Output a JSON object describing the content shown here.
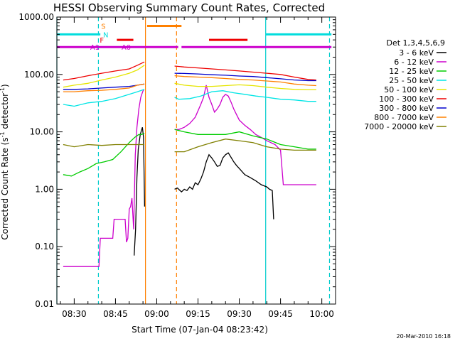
{
  "chart_data": {
    "type": "line",
    "title": "HESSI Observing Summary Count Rates, Corrected",
    "xlabel": "Start Time (07-Jan-04 08:23:42)",
    "ylabel_main": "Corrected Count Rate (s",
    "ylabel_sup": "-1",
    "ylabel_mid": " detector",
    "ylabel_sup2": "-1",
    "ylabel_end": ")",
    "yscale": "log",
    "ylim": [
      0.01,
      1000
    ],
    "y_ticks": [
      1000,
      100,
      10,
      1,
      0.1,
      0.01
    ],
    "y_tick_labels": [
      "1000.00",
      "100.00",
      "10.00",
      "1.00",
      "0.10",
      "0.01"
    ],
    "xlim_minutes": [
      503.7,
      605
    ],
    "x_ticks_minutes": [
      510,
      525,
      540,
      555,
      570,
      585,
      600
    ],
    "x_tick_labels": [
      "08:30",
      "08:45",
      "09:00",
      "09:15",
      "09:30",
      "09:45",
      "10:00"
    ],
    "legend_title": "Det 1,3,4,5,6,9",
    "grid": false,
    "legend_position": "right",
    "footer_date": "20-Mar-2010 16:18",
    "series": [
      {
        "name": "3 - 6 keV",
        "color": "#000000",
        "points": [
          [
            531.8,
            0.07
          ],
          [
            532.3,
            0.2
          ],
          [
            532.8,
            1.6
          ],
          [
            533.3,
            5
          ],
          [
            534,
            9
          ],
          [
            534.8,
            12
          ],
          [
            535.2,
            8
          ],
          [
            535.6,
            0.5
          ],
          [
            546.5,
            1.0
          ],
          [
            547.5,
            1.05
          ],
          [
            549,
            0.9
          ],
          [
            550,
            1.0
          ],
          [
            551,
            0.95
          ],
          [
            552,
            1.1
          ],
          [
            553,
            1.0
          ],
          [
            554,
            1.3
          ],
          [
            555,
            1.2
          ],
          [
            556,
            1.5
          ],
          [
            557,
            2
          ],
          [
            558,
            3
          ],
          [
            559,
            4
          ],
          [
            560,
            3.5
          ],
          [
            561,
            3
          ],
          [
            562,
            2.5
          ],
          [
            563,
            2.6
          ],
          [
            564,
            3.5
          ],
          [
            565,
            4
          ],
          [
            566,
            4.3
          ],
          [
            567,
            3.6
          ],
          [
            568,
            3
          ],
          [
            569,
            2.6
          ],
          [
            570,
            2.3
          ],
          [
            572,
            1.8
          ],
          [
            574,
            1.6
          ],
          [
            576,
            1.4
          ],
          [
            578,
            1.2
          ],
          [
            580,
            1.1
          ],
          [
            581,
            1.0
          ],
          [
            582,
            0.95
          ],
          [
            582.5,
            0.3
          ]
        ]
      },
      {
        "name": "6 - 12 keV",
        "color": "#cc00cc",
        "points": [
          [
            506,
            0.045
          ],
          [
            509,
            0.045
          ],
          [
            514,
            0.045
          ],
          [
            519,
            0.045
          ],
          [
            519.5,
            0.14
          ],
          [
            524,
            0.14
          ],
          [
            524.5,
            0.3
          ],
          [
            528.5,
            0.3
          ],
          [
            529,
            0.12
          ],
          [
            529.5,
            0.14
          ],
          [
            530,
            0.45
          ],
          [
            530.5,
            0.5
          ],
          [
            531,
            0.7
          ],
          [
            531.6,
            0.2
          ],
          [
            532.2,
            4
          ],
          [
            532.8,
            12
          ],
          [
            533.5,
            25
          ],
          [
            534.2,
            40
          ],
          [
            534.9,
            50
          ],
          [
            535.3,
            55
          ],
          [
            546.5,
            11
          ],
          [
            548,
            11
          ],
          [
            550,
            12
          ],
          [
            552,
            14
          ],
          [
            554,
            18
          ],
          [
            556,
            30
          ],
          [
            557,
            40
          ],
          [
            558,
            65
          ],
          [
            559,
            40
          ],
          [
            560,
            30
          ],
          [
            561,
            22
          ],
          [
            562,
            25
          ],
          [
            563,
            30
          ],
          [
            564,
            40
          ],
          [
            565,
            45
          ],
          [
            566,
            42
          ],
          [
            567,
            33
          ],
          [
            568,
            25
          ],
          [
            569,
            20
          ],
          [
            570,
            16
          ],
          [
            572,
            13
          ],
          [
            574,
            11
          ],
          [
            576,
            9
          ],
          [
            578,
            8
          ],
          [
            580,
            7
          ],
          [
            583,
            6
          ],
          [
            585,
            4.8
          ],
          [
            586,
            1.2
          ],
          [
            590,
            1.2
          ],
          [
            595,
            1.2
          ],
          [
            598,
            1.2
          ]
        ]
      },
      {
        "name": "12 - 25 keV",
        "color": "#00cc00",
        "points": [
          [
            506,
            1.8
          ],
          [
            509,
            1.7
          ],
          [
            512,
            2.0
          ],
          [
            515,
            2.3
          ],
          [
            518,
            2.8
          ],
          [
            521,
            3.0
          ],
          [
            524,
            3.3
          ],
          [
            527,
            4.5
          ],
          [
            530,
            6.5
          ],
          [
            532,
            8
          ],
          [
            533.5,
            9
          ],
          [
            534.5,
            9
          ],
          [
            535.5,
            9.5
          ],
          [
            546.5,
            11
          ],
          [
            550,
            10
          ],
          [
            555,
            9
          ],
          [
            560,
            9
          ],
          [
            565,
            9
          ],
          [
            570,
            10
          ],
          [
            575,
            8.5
          ],
          [
            580,
            7.5
          ],
          [
            585,
            6
          ],
          [
            590,
            5.5
          ],
          [
            595,
            5
          ],
          [
            598,
            5
          ]
        ]
      },
      {
        "name": "25 - 50 keV",
        "color": "#00e5e5",
        "points": [
          [
            506,
            30
          ],
          [
            510,
            28
          ],
          [
            515,
            32
          ],
          [
            520,
            34
          ],
          [
            525,
            38
          ],
          [
            530,
            45
          ],
          [
            533,
            50
          ],
          [
            535.5,
            55
          ],
          [
            546.5,
            40
          ],
          [
            548,
            37
          ],
          [
            552,
            38
          ],
          [
            556,
            42
          ],
          [
            560,
            50
          ],
          [
            564,
            52
          ],
          [
            568,
            48
          ],
          [
            572,
            45
          ],
          [
            576,
            42
          ],
          [
            580,
            40
          ],
          [
            585,
            37
          ],
          [
            590,
            36
          ],
          [
            595,
            34
          ],
          [
            598,
            34
          ]
        ]
      },
      {
        "name": "50 - 100 keV",
        "color": "#e5e500",
        "points": [
          [
            506,
            60
          ],
          [
            510,
            65
          ],
          [
            515,
            70
          ],
          [
            520,
            80
          ],
          [
            525,
            90
          ],
          [
            530,
            105
          ],
          [
            533,
            120
          ],
          [
            535.5,
            145
          ],
          [
            546.5,
            70
          ],
          [
            550,
            65
          ],
          [
            555,
            62
          ],
          [
            560,
            62
          ],
          [
            565,
            64
          ],
          [
            570,
            66
          ],
          [
            575,
            64
          ],
          [
            580,
            60
          ],
          [
            585,
            57
          ],
          [
            590,
            55
          ],
          [
            595,
            54
          ],
          [
            598,
            54
          ]
        ]
      },
      {
        "name": "100 - 300 keV",
        "color": "#ee0000",
        "points": [
          [
            506,
            80
          ],
          [
            510,
            85
          ],
          [
            515,
            95
          ],
          [
            520,
            105
          ],
          [
            525,
            115
          ],
          [
            530,
            125
          ],
          [
            533,
            145
          ],
          [
            535.5,
            165
          ],
          [
            546.5,
            140
          ],
          [
            550,
            135
          ],
          [
            555,
            130
          ],
          [
            560,
            125
          ],
          [
            565,
            120
          ],
          [
            570,
            115
          ],
          [
            575,
            110
          ],
          [
            580,
            105
          ],
          [
            585,
            100
          ],
          [
            590,
            90
          ],
          [
            595,
            82
          ],
          [
            598,
            80
          ]
        ]
      },
      {
        "name": "300 - 800 keV",
        "color": "#0000cc",
        "points": [
          [
            506,
            55
          ],
          [
            510,
            55
          ],
          [
            515,
            56
          ],
          [
            520,
            58
          ],
          [
            525,
            60
          ],
          [
            530,
            62
          ],
          [
            533,
            65
          ],
          [
            535.5,
            68
          ],
          [
            546.5,
            105
          ],
          [
            550,
            104
          ],
          [
            555,
            102
          ],
          [
            560,
            99
          ],
          [
            565,
            97
          ],
          [
            570,
            94
          ],
          [
            575,
            92
          ],
          [
            580,
            88
          ],
          [
            585,
            84
          ],
          [
            590,
            80
          ],
          [
            595,
            78
          ],
          [
            598,
            78
          ]
        ]
      },
      {
        "name": "800 - 7000 keV",
        "color": "#ff8000",
        "points": [
          [
            506,
            50
          ],
          [
            510,
            50
          ],
          [
            515,
            52
          ],
          [
            520,
            53
          ],
          [
            525,
            55
          ],
          [
            530,
            58
          ],
          [
            533,
            65
          ],
          [
            535.5,
            68
          ],
          [
            546.5,
            95
          ],
          [
            550,
            92
          ],
          [
            555,
            90
          ],
          [
            560,
            88
          ],
          [
            565,
            85
          ],
          [
            570,
            82
          ],
          [
            575,
            80
          ],
          [
            580,
            77
          ],
          [
            585,
            74
          ],
          [
            590,
            68
          ],
          [
            595,
            65
          ],
          [
            598,
            64
          ]
        ]
      },
      {
        "name": "7000 - 20000 keV",
        "color": "#808000",
        "points": [
          [
            506,
            6
          ],
          [
            510,
            5.5
          ],
          [
            515,
            6
          ],
          [
            520,
            5.8
          ],
          [
            525,
            6
          ],
          [
            530,
            6
          ],
          [
            533,
            6
          ],
          [
            535.5,
            6
          ],
          [
            546.5,
            4.5
          ],
          [
            550,
            4.5
          ],
          [
            555,
            5.5
          ],
          [
            560,
            6.5
          ],
          [
            565,
            7.5
          ],
          [
            570,
            7
          ],
          [
            575,
            6.5
          ],
          [
            580,
            5.5
          ],
          [
            585,
            5
          ],
          [
            590,
            4.8
          ],
          [
            595,
            4.8
          ],
          [
            598,
            4.8
          ]
        ]
      }
    ],
    "vertical_lines": [
      {
        "x": 503.7,
        "color": "#00cccc",
        "style": "solid"
      },
      {
        "x": 518.8,
        "color": "#00cccc",
        "style": "dashed"
      },
      {
        "x": 535.9,
        "color": "#ff8000",
        "style": "solid"
      },
      {
        "x": 547.2,
        "color": "#ff8000",
        "style": "dashed"
      },
      {
        "x": 579.6,
        "color": "#00cccc",
        "style": "solid"
      },
      {
        "x": 602.8,
        "color": "#00cccc",
        "style": "dashed"
      }
    ],
    "flag_bars": [
      {
        "label": "N",
        "color": "#00dddd",
        "x0": 503.7,
        "x1": 519.5,
        "y": 500,
        "label_x": 520.5
      },
      {
        "label": "N",
        "color": "#00dddd",
        "x0": 579.6,
        "x1": 603.5,
        "y": 500,
        "label_x": null
      },
      {
        "label": "S",
        "color": "#ff8000",
        "x0": 536.5,
        "x1": 549,
        "y": 700,
        "label_x": 519.8
      },
      {
        "label": "F",
        "color": "#ee0000",
        "x0": 525.5,
        "x1": 531.5,
        "y": 400,
        "label_x": 519.3
      },
      {
        "label": "F",
        "color": "#ee0000",
        "x0": 559,
        "x1": 573,
        "y": 400,
        "label_x": null
      },
      {
        "label": "A1",
        "color": "#cc00cc",
        "x0": 503.7,
        "x1": 547.8,
        "y": 300,
        "label_x": 515.8
      },
      {
        "label": "A0",
        "color": "#cc00cc",
        "x0": 549,
        "x1": 603.5,
        "y": 300,
        "label_x": 527.2
      }
    ]
  }
}
